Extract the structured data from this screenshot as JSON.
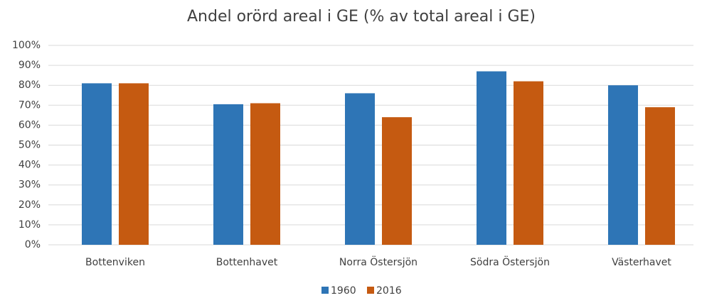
{
  "chart_data": {
    "type": "bar",
    "title": "Andel orörd areal i GE (% av total areal i GE)",
    "categories": [
      "Bottenviken",
      "Bottenhavet",
      "Norra Östersjön",
      "Södra Östersjön",
      "Västerhavet"
    ],
    "series": [
      {
        "name": "1960",
        "color": "#2e75b6",
        "values": [
          81,
          70.5,
          76,
          87,
          80
        ]
      },
      {
        "name": "2016",
        "color": "#c55a11",
        "values": [
          81,
          71,
          64,
          82,
          69
        ]
      }
    ],
    "ylim": [
      0,
      100
    ],
    "yticks": [
      {
        "value": 0,
        "label": "0%"
      },
      {
        "value": 10,
        "label": "10%"
      },
      {
        "value": 20,
        "label": "20%"
      },
      {
        "value": 30,
        "label": "30%"
      },
      {
        "value": 40,
        "label": "40%"
      },
      {
        "value": 50,
        "label": "50%"
      },
      {
        "value": 60,
        "label": "60%"
      },
      {
        "value": 70,
        "label": "70%"
      },
      {
        "value": 80,
        "label": "80%"
      },
      {
        "value": 90,
        "label": "90%"
      },
      {
        "value": 100,
        "label": "100%"
      }
    ],
    "grid": true,
    "legend": "bottom"
  }
}
